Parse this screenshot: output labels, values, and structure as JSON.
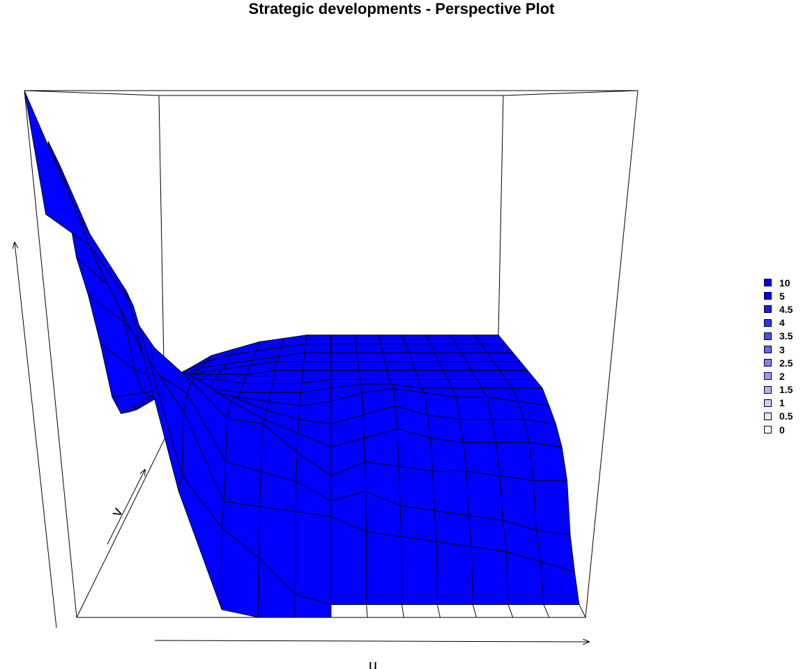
{
  "chart_data": {
    "type": "surface",
    "title": "Strategic developments - Perspective Plot",
    "xlabel": "u",
    "ylabel": "v",
    "zlabel": "",
    "grid": "15x15",
    "surface_color": "#0000ff",
    "edge_color": "#000000",
    "box": true,
    "legend_position": "right",
    "legend": [
      {
        "label": "10",
        "color": "#0000ff"
      },
      {
        "label": "5",
        "color": "#0000ff"
      },
      {
        "label": "4.5",
        "color": "#1a1aff"
      },
      {
        "label": "4",
        "color": "#3333ff"
      },
      {
        "label": "3.5",
        "color": "#4d4dff"
      },
      {
        "label": "3",
        "color": "#6666ff"
      },
      {
        "label": "2.5",
        "color": "#8080ff"
      },
      {
        "label": "2",
        "color": "#9999ff"
      },
      {
        "label": "1.5",
        "color": "#b3b3ff"
      },
      {
        "label": "1",
        "color": "#ccccff"
      },
      {
        "label": "0.5",
        "color": "#e6e6ff"
      },
      {
        "label": "0",
        "color": "#ffffff"
      }
    ],
    "z": [
      [
        10,
        7.6,
        6.2,
        2.4,
        0.15,
        0,
        0,
        0,
        0,
        0,
        0,
        0,
        0,
        0,
        0
      ],
      [
        7.6,
        7.0,
        5.8,
        2.5,
        1.5,
        0.9,
        0.2,
        0,
        0,
        0,
        0,
        0,
        0,
        0,
        0
      ],
      [
        9.0,
        6.5,
        4.8,
        3.6,
        1.8,
        1.7,
        1.6,
        1.5,
        1.2,
        1.1,
        1.0,
        0.9,
        0.8,
        0.6,
        0.4
      ],
      [
        8.5,
        6.3,
        4.3,
        3.8,
        2.4,
        2.2,
        2.0,
        1.6,
        1.8,
        1.5,
        1.4,
        1.3,
        1.2,
        1.0,
        0.9
      ],
      [
        6.5,
        5.8,
        4.6,
        3.9,
        3.1,
        3.0,
        2.4,
        1.9,
        2.2,
        2.1,
        2.0,
        2.0,
        1.9,
        1.8,
        1.8
      ],
      [
        5.6,
        5.0,
        4.1,
        3.8,
        3.3,
        2.9,
        2.6,
        2.3,
        2.5,
        2.7,
        2.5,
        2.4,
        2.4,
        2.4,
        2.3
      ],
      [
        4.4,
        3.8,
        3.6,
        3.4,
        3.2,
        2.9,
        2.7,
        2.6,
        2.8,
        3.0,
        2.8,
        2.7,
        2.7,
        2.7,
        2.6
      ],
      [
        3.0,
        3.1,
        3.2,
        3.1,
        3.0,
        2.9,
        2.8,
        2.9,
        3.1,
        3.2,
        3.1,
        3.0,
        3.0,
        2.9,
        2.8
      ],
      [
        2.4,
        2.8,
        3.0,
        3.0,
        2.9,
        2.9,
        2.9,
        3.0,
        3.1,
        3.1,
        3.0,
        3.0,
        3.0,
        3.0,
        3.0
      ],
      [
        2.2,
        2.6,
        3.0,
        3.0,
        2.9,
        2.9,
        2.9,
        3.0,
        3.0,
        3.0,
        3.0,
        3.0,
        3.0,
        3.0,
        3.0
      ],
      [
        2.0,
        2.4,
        2.9,
        2.9,
        2.9,
        3.0,
        3.0,
        3.0,
        3.0,
        3.0,
        3.0,
        3.0,
        3.0,
        3.0,
        3.0
      ],
      [
        1.9,
        2.3,
        2.7,
        2.8,
        2.9,
        3.0,
        3.0,
        3.0,
        3.0,
        3.0,
        3.0,
        3.0,
        3.0,
        3.0,
        3.0
      ],
      [
        1.8,
        2.3,
        2.6,
        2.7,
        2.8,
        2.9,
        3.0,
        3.0,
        3.0,
        3.0,
        3.0,
        3.0,
        3.0,
        3.0,
        3.0
      ],
      [
        1.6,
        2.2,
        2.5,
        2.7,
        2.8,
        2.9,
        3.0,
        3.0,
        3.0,
        3.0,
        3.0,
        3.0,
        3.0,
        3.0,
        3.0
      ],
      [
        1.4,
        2.0,
        2.4,
        2.6,
        2.8,
        2.9,
        3.0,
        3.0,
        3.0,
        3.0,
        3.0,
        3.0,
        3.0,
        3.0,
        3.0
      ]
    ]
  }
}
